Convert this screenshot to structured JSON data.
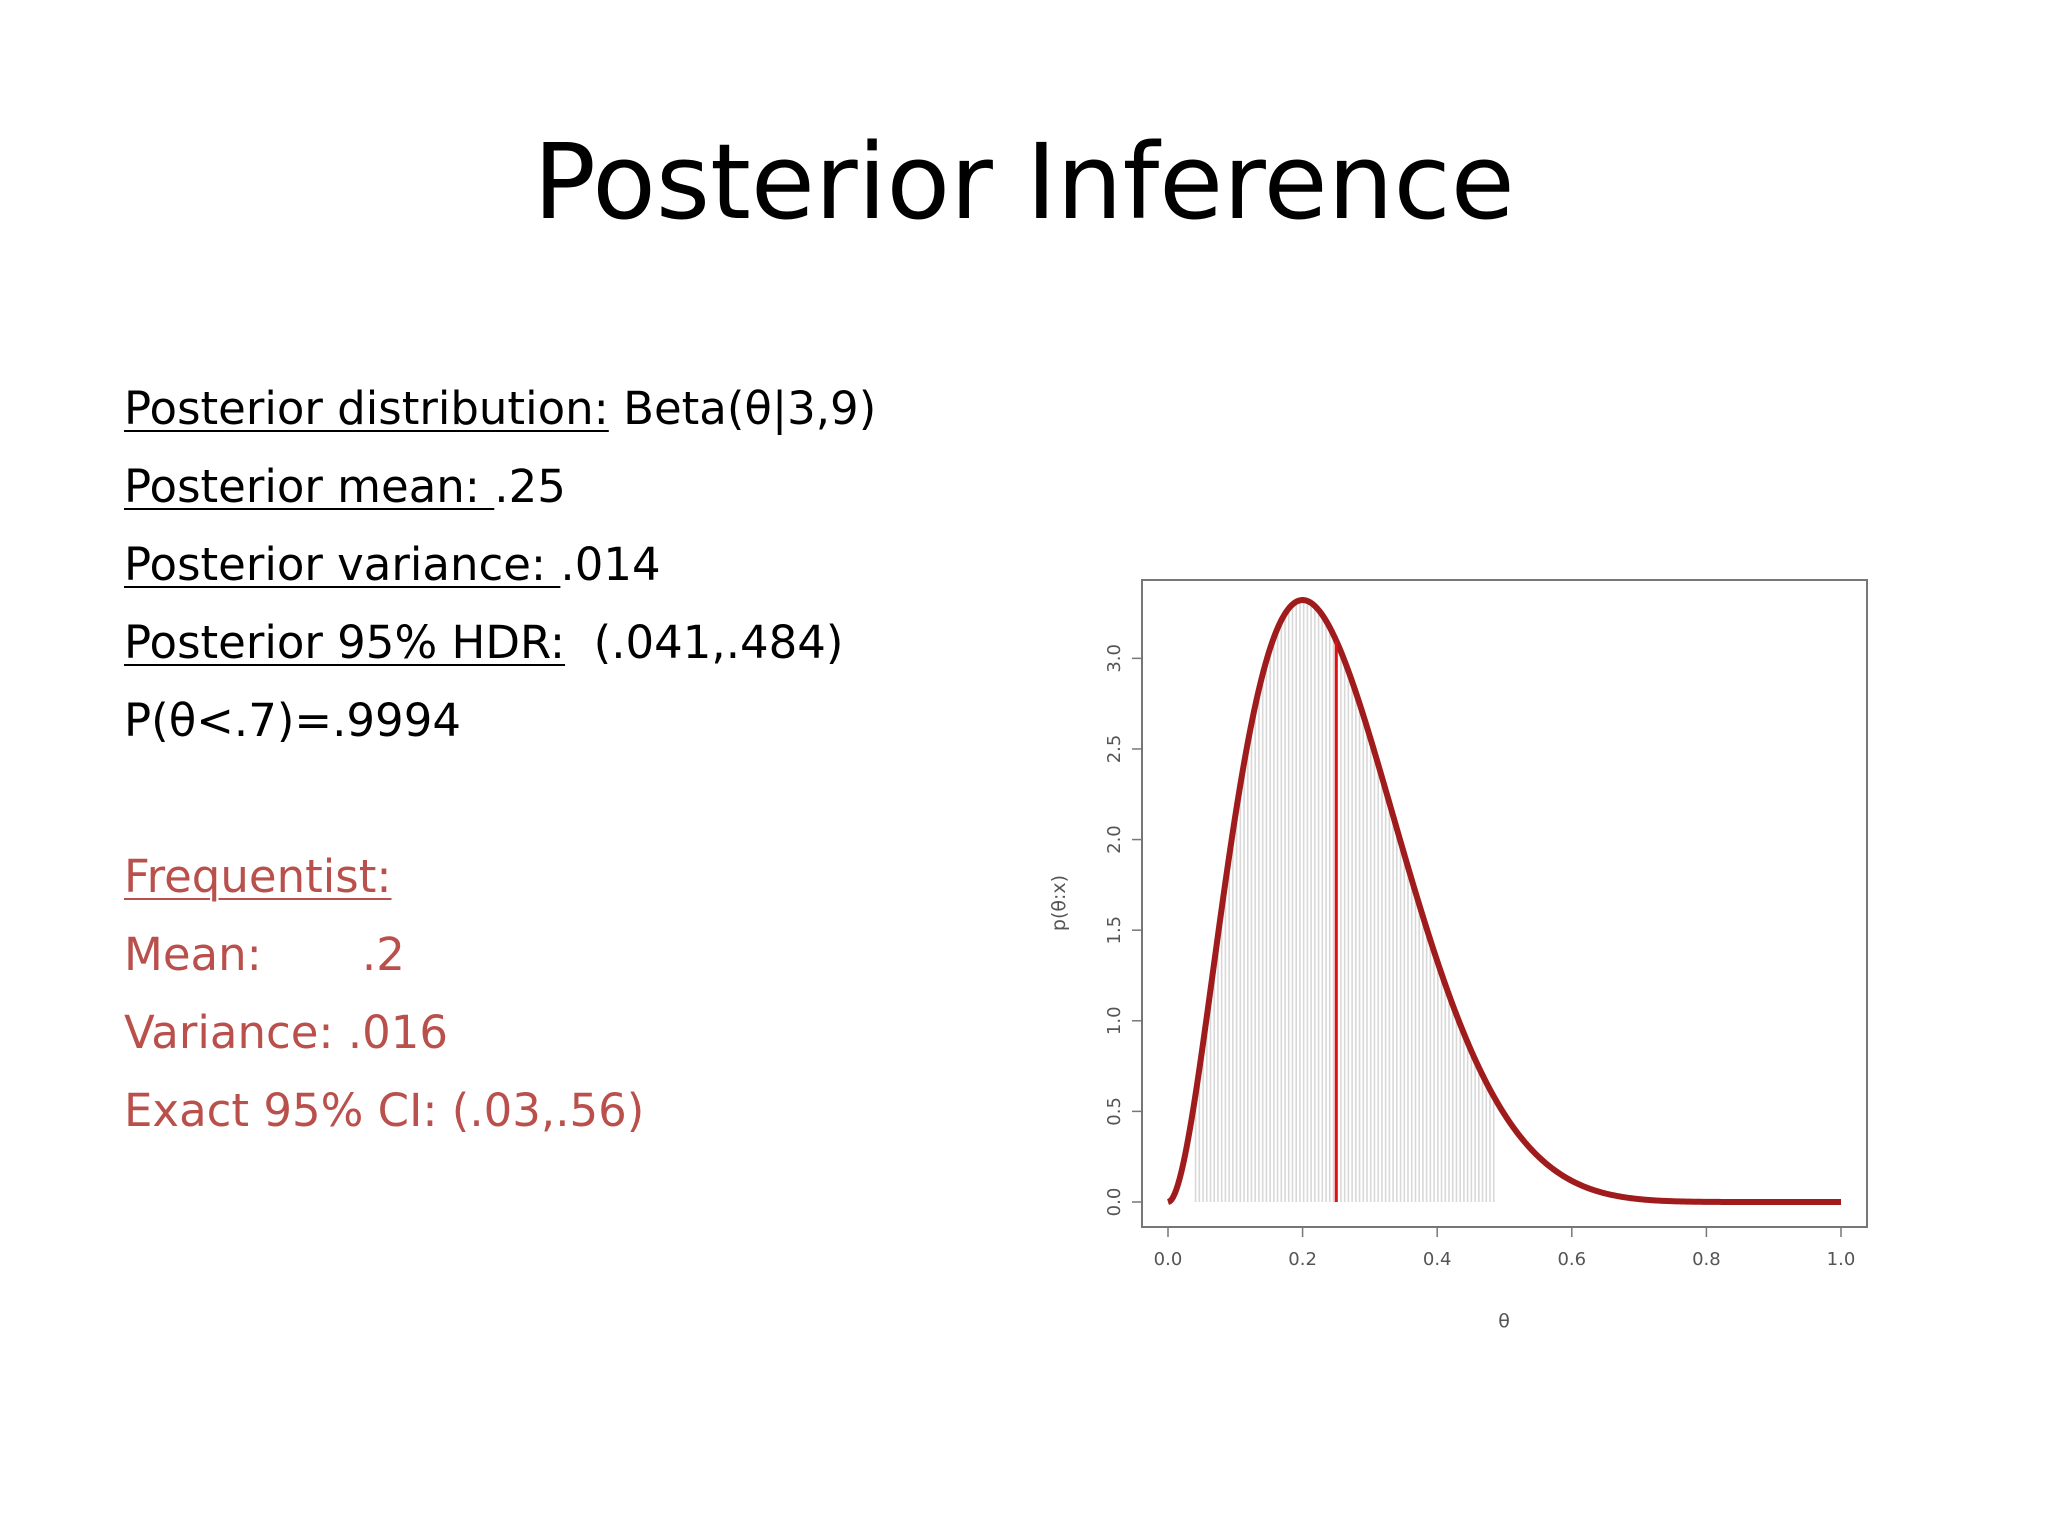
{
  "slide": {
    "title": "Posterior Inference",
    "posterior": [
      {
        "label": "Posterior distribution:",
        "value": " Beta(θ|3,9)"
      },
      {
        "label": "Posterior mean: ",
        "value": ".25"
      },
      {
        "label": "Posterior variance: ",
        "value": ".014"
      },
      {
        "label": "Posterior 95% HDR:",
        "value": "  (.041,.484)"
      },
      {
        "label": "",
        "value": "P(θ<.7)=.9994"
      }
    ],
    "frequentist": {
      "heading": "Frequentist:",
      "lines": [
        "Mean:       .2",
        "Variance: .016",
        "Exact 95% CI: (.03,.56)"
      ]
    }
  },
  "colors": {
    "curve": "#a01c1c",
    "mean_line": "#e01010",
    "shade": "#d8d8d8",
    "frequentist_text": "#b9504c"
  },
  "chart_data": {
    "type": "line",
    "distribution": "Beta(3,9)",
    "alpha": 3,
    "beta": 9,
    "xlabel": "θ",
    "ylabel": "p(θ:x)",
    "xlim": [
      0,
      1
    ],
    "ylim": [
      0,
      3.3
    ],
    "x_ticks": [
      "0.0",
      "0.2",
      "0.4",
      "0.6",
      "0.8",
      "1.0"
    ],
    "y_ticks": [
      "0.0",
      "0.5",
      "1.0",
      "1.5",
      "2.0",
      "2.5",
      "3.0"
    ],
    "hdr_shaded": [
      0.041,
      0.484
    ],
    "mean_line_x": 0.25,
    "grid": false
  }
}
